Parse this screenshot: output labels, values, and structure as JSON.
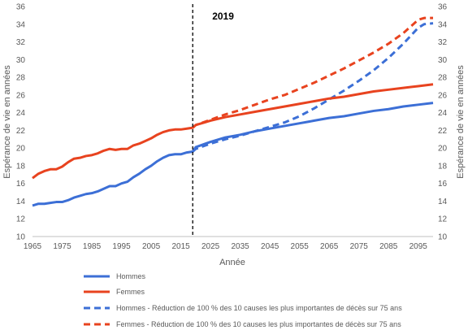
{
  "chart_data": {
    "type": "line",
    "xlabel": "Année",
    "ylabel": "Espérance de vie en années",
    "xlim": [
      1965,
      2100
    ],
    "ylim": [
      10,
      36
    ],
    "x_ticks": [
      1965,
      1975,
      1985,
      1995,
      2005,
      2015,
      2025,
      2035,
      2045,
      2055,
      2065,
      2075,
      2085,
      2095
    ],
    "y_ticks": [
      10,
      12,
      14,
      16,
      18,
      20,
      22,
      24,
      26,
      28,
      30,
      32,
      34,
      36
    ],
    "secondary_y_axis": true,
    "grid": false,
    "legend_position": "bottom",
    "annotations": [
      {
        "label": "2019",
        "x": 2019,
        "style": "vertical dashed line",
        "color": "#000000"
      }
    ],
    "series": [
      {
        "name": "Hommes",
        "color": "#3C6FD6",
        "style": "solid",
        "points": [
          [
            1965,
            13.5
          ],
          [
            1967,
            13.7
          ],
          [
            1969,
            13.7
          ],
          [
            1971,
            13.8
          ],
          [
            1973,
            13.9
          ],
          [
            1975,
            13.9
          ],
          [
            1977,
            14.1
          ],
          [
            1979,
            14.4
          ],
          [
            1981,
            14.6
          ],
          [
            1983,
            14.8
          ],
          [
            1985,
            14.9
          ],
          [
            1987,
            15.1
          ],
          [
            1989,
            15.4
          ],
          [
            1991,
            15.7
          ],
          [
            1993,
            15.7
          ],
          [
            1995,
            16.0
          ],
          [
            1997,
            16.2
          ],
          [
            1999,
            16.7
          ],
          [
            2001,
            17.1
          ],
          [
            2003,
            17.6
          ],
          [
            2005,
            18.0
          ],
          [
            2007,
            18.5
          ],
          [
            2009,
            18.9
          ],
          [
            2011,
            19.2
          ],
          [
            2013,
            19.3
          ],
          [
            2015,
            19.3
          ],
          [
            2017,
            19.5
          ],
          [
            2019,
            19.6
          ],
          [
            2020,
            20.1
          ],
          [
            2025,
            20.7
          ],
          [
            2030,
            21.2
          ],
          [
            2035,
            21.5
          ],
          [
            2040,
            21.9
          ],
          [
            2045,
            22.2
          ],
          [
            2050,
            22.5
          ],
          [
            2055,
            22.8
          ],
          [
            2060,
            23.1
          ],
          [
            2065,
            23.4
          ],
          [
            2070,
            23.6
          ],
          [
            2075,
            23.9
          ],
          [
            2080,
            24.2
          ],
          [
            2085,
            24.4
          ],
          [
            2090,
            24.7
          ],
          [
            2095,
            24.9
          ],
          [
            2100,
            25.1
          ]
        ]
      },
      {
        "name": "Femmes",
        "color": "#E8431F",
        "style": "solid",
        "points": [
          [
            1965,
            16.6
          ],
          [
            1967,
            17.1
          ],
          [
            1969,
            17.4
          ],
          [
            1971,
            17.6
          ],
          [
            1973,
            17.6
          ],
          [
            1975,
            17.9
          ],
          [
            1977,
            18.4
          ],
          [
            1979,
            18.8
          ],
          [
            1981,
            18.9
          ],
          [
            1983,
            19.1
          ],
          [
            1985,
            19.2
          ],
          [
            1987,
            19.4
          ],
          [
            1989,
            19.7
          ],
          [
            1991,
            19.9
          ],
          [
            1993,
            19.8
          ],
          [
            1995,
            19.9
          ],
          [
            1997,
            19.9
          ],
          [
            1999,
            20.3
          ],
          [
            2001,
            20.5
          ],
          [
            2003,
            20.8
          ],
          [
            2005,
            21.1
          ],
          [
            2007,
            21.5
          ],
          [
            2009,
            21.8
          ],
          [
            2011,
            22.0
          ],
          [
            2013,
            22.1
          ],
          [
            2015,
            22.1
          ],
          [
            2017,
            22.2
          ],
          [
            2019,
            22.3
          ],
          [
            2020,
            22.6
          ],
          [
            2025,
            23.1
          ],
          [
            2030,
            23.5
          ],
          [
            2035,
            23.8
          ],
          [
            2040,
            24.1
          ],
          [
            2045,
            24.4
          ],
          [
            2050,
            24.7
          ],
          [
            2055,
            25.0
          ],
          [
            2060,
            25.3
          ],
          [
            2065,
            25.6
          ],
          [
            2070,
            25.8
          ],
          [
            2075,
            26.1
          ],
          [
            2080,
            26.4
          ],
          [
            2085,
            26.6
          ],
          [
            2090,
            26.8
          ],
          [
            2095,
            27.0
          ],
          [
            2100,
            27.2
          ]
        ]
      },
      {
        "name": "Hommes - Réduction de 100 % des 10 causes les plus importantes de décès sur 75 ans",
        "color": "#3C6FD6",
        "style": "dashed",
        "points": [
          [
            2019,
            19.6
          ],
          [
            2020,
            19.9
          ],
          [
            2025,
            20.5
          ],
          [
            2030,
            21.0
          ],
          [
            2035,
            21.4
          ],
          [
            2040,
            21.9
          ],
          [
            2045,
            22.4
          ],
          [
            2050,
            22.9
          ],
          [
            2055,
            23.6
          ],
          [
            2060,
            24.5
          ],
          [
            2065,
            25.5
          ],
          [
            2070,
            26.5
          ],
          [
            2075,
            27.6
          ],
          [
            2080,
            28.8
          ],
          [
            2085,
            30.2
          ],
          [
            2090,
            31.8
          ],
          [
            2095,
            33.6
          ],
          [
            2097,
            34.0
          ],
          [
            2100,
            34.1
          ]
        ]
      },
      {
        "name": "Femmes - Réduction de 100 % des 10 causes les plus importantes de décès sur 75 ans",
        "color": "#E8431F",
        "style": "dashed",
        "points": [
          [
            2019,
            22.3
          ],
          [
            2020,
            22.6
          ],
          [
            2025,
            23.2
          ],
          [
            2030,
            23.8
          ],
          [
            2035,
            24.3
          ],
          [
            2040,
            24.9
          ],
          [
            2045,
            25.5
          ],
          [
            2050,
            26.0
          ],
          [
            2055,
            26.7
          ],
          [
            2060,
            27.4
          ],
          [
            2065,
            28.2
          ],
          [
            2070,
            29.0
          ],
          [
            2075,
            29.9
          ],
          [
            2080,
            30.8
          ],
          [
            2085,
            31.8
          ],
          [
            2090,
            33.0
          ],
          [
            2095,
            34.5
          ],
          [
            2097,
            34.7
          ],
          [
            2100,
            34.7
          ]
        ]
      }
    ]
  }
}
